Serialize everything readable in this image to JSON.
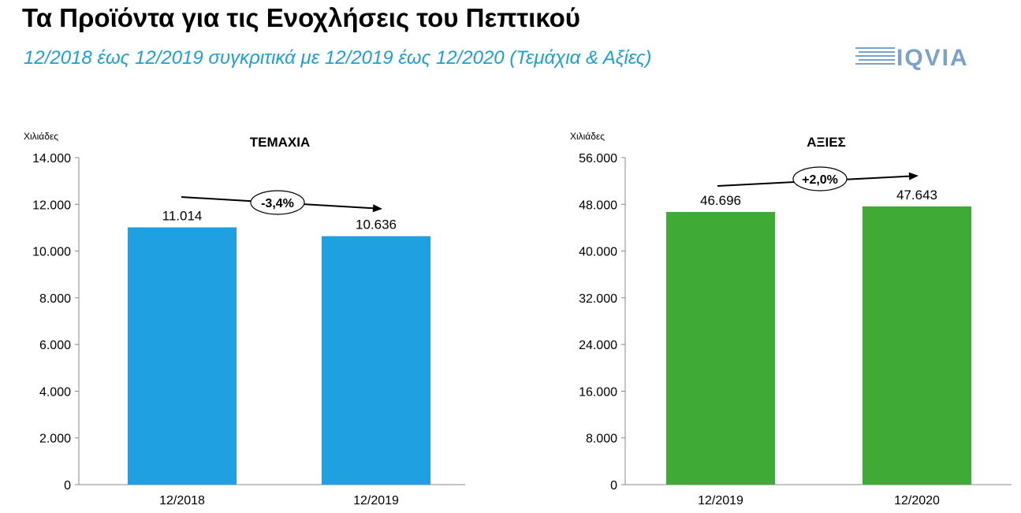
{
  "page": {
    "title": "Τα Προϊόντα για τις Ενοχλήσεις του Πεπτικού",
    "subtitle": "12/2018 έως 12/2019 συγκριτικά με 12/2019 έως 12/2020 (Τεμάχια & Αξίες)",
    "logo_text": "IQVIA",
    "logo_color": "#7aa3c9"
  },
  "chart_data": [
    {
      "type": "bar",
      "title": "ΤΕΜΑΧΙΑ",
      "ylabel": "Χιλιάδες",
      "categories": [
        "12/2018",
        "12/2019"
      ],
      "values": [
        11014,
        10636
      ],
      "value_labels": [
        "11.014",
        "10.636"
      ],
      "ylim": [
        0,
        14000
      ],
      "yticks": [
        0,
        2000,
        4000,
        6000,
        8000,
        10000,
        12000,
        14000
      ],
      "ytick_labels": [
        "0",
        "2.000",
        "4.000",
        "6.000",
        "8.000",
        "10.000",
        "12.000",
        "14.000"
      ],
      "change_label": "-3,4%",
      "bar_color": "#1fa0e0",
      "grid": false
    },
    {
      "type": "bar",
      "title": "ΑΞΙΕΣ",
      "ylabel": "Χιλιάδες",
      "categories": [
        "12/2019",
        "12/2020"
      ],
      "values": [
        46696,
        47643
      ],
      "value_labels": [
        "46.696",
        "47.643"
      ],
      "ylim": [
        0,
        56000
      ],
      "yticks": [
        0,
        8000,
        16000,
        24000,
        32000,
        40000,
        48000,
        56000
      ],
      "ytick_labels": [
        "0",
        "8.000",
        "16.000",
        "24.000",
        "32.000",
        "40.000",
        "48.000",
        "56.000"
      ],
      "change_label": "+2,0%",
      "bar_color": "#3faa35",
      "grid": false
    }
  ]
}
